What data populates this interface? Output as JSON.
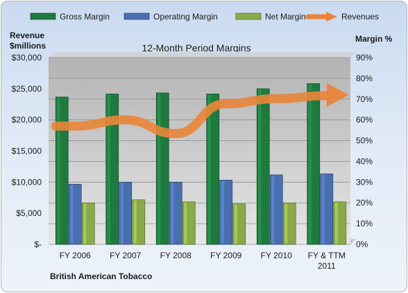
{
  "chart_data": {
    "type": "bar",
    "title": "12-Month Period Margins",
    "subtitle": "British American Tobacco",
    "ylabel_left": [
      "Revenue",
      "$millions"
    ],
    "ylabel_right": "Margin %",
    "categories": [
      [
        "FY 2006"
      ],
      [
        "FY 2007"
      ],
      [
        "FY 2008"
      ],
      [
        "FY 2009"
      ],
      [
        "FY 2010"
      ],
      [
        "FY & TTM",
        "2011"
      ]
    ],
    "ylim_left": [
      0,
      30000
    ],
    "ylim_right": [
      0,
      90
    ],
    "left_ticks": [
      "$-",
      "$5,000",
      "$10,000",
      "$15,000",
      "$20,000",
      "$25,000",
      "$30,000"
    ],
    "right_ticks": [
      "0%",
      "10%",
      "20%",
      "30%",
      "40%",
      "50%",
      "60%",
      "70%",
      "80%",
      "90%"
    ],
    "grid": true,
    "legend_position": "top",
    "series": [
      {
        "name": "Gross Margin",
        "axis": "right",
        "type": "bar",
        "color": "#1e7a3e",
        "values": [
          71,
          72.5,
          73,
          72.5,
          75,
          77.5
        ]
      },
      {
        "name": "Operating Margin",
        "axis": "right",
        "type": "bar",
        "color": "#4a6fae",
        "values": [
          29,
          30,
          30,
          31,
          33.5,
          34
        ]
      },
      {
        "name": "Net Margin",
        "axis": "right",
        "type": "bar",
        "color": "#8aaa4a",
        "values": [
          20,
          21.5,
          20.5,
          19.5,
          20,
          20.5
        ]
      },
      {
        "name": "Revenues",
        "axis": "left",
        "type": "line",
        "color": "#e8853a",
        "values": [
          19000,
          20000,
          17800,
          22600,
          23400,
          23900
        ]
      }
    ]
  }
}
